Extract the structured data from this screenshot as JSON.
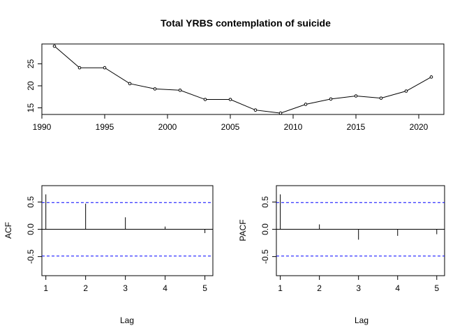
{
  "chart_data": [
    {
      "type": "line",
      "title": "Total YRBS contemplation of suicide",
      "xlabel": "",
      "ylabel": "",
      "xlim": [
        1990,
        2022
      ],
      "ylim": [
        13.5,
        29.5
      ],
      "xticks": [
        1990,
        1995,
        2000,
        2005,
        2010,
        2015,
        2020
      ],
      "yticks": [
        15,
        20,
        25
      ],
      "x": [
        1991,
        1993,
        1995,
        1997,
        1999,
        2001,
        2003,
        2005,
        2007,
        2009,
        2011,
        2013,
        2015,
        2017,
        2019,
        2021
      ],
      "series": [
        {
          "values": [
            29.0,
            24.1,
            24.1,
            20.5,
            19.3,
            19.0,
            16.9,
            16.9,
            14.5,
            13.8,
            15.8,
            17.0,
            17.7,
            17.2,
            18.8,
            22.0
          ]
        }
      ],
      "grid": false
    },
    {
      "type": "bar",
      "title": "",
      "xlabel": "Lag",
      "ylabel": "ACF",
      "xlim": [
        0.9,
        5.2
      ],
      "ylim": [
        -0.85,
        0.8
      ],
      "xticks": [
        1,
        2,
        3,
        4,
        5
      ],
      "yticks": [
        -0.5,
        0.0,
        0.5
      ],
      "x": [
        1,
        2,
        3,
        4,
        5
      ],
      "values": [
        0.64,
        0.47,
        0.22,
        0.05,
        -0.07
      ],
      "confidence_limits": [
        0.49,
        -0.49
      ],
      "confidence_color": "#0000ff"
    },
    {
      "type": "bar",
      "title": "",
      "xlabel": "Lag",
      "ylabel": "PACF",
      "xlim": [
        0.9,
        5.2
      ],
      "ylim": [
        -0.85,
        0.8
      ],
      "xticks": [
        1,
        2,
        3,
        4,
        5
      ],
      "yticks": [
        -0.5,
        0.0,
        0.5
      ],
      "x": [
        1,
        2,
        3,
        4,
        5
      ],
      "values": [
        0.64,
        0.09,
        -0.19,
        -0.12,
        -0.09
      ],
      "confidence_limits": [
        0.49,
        -0.49
      ],
      "confidence_color": "#0000ff"
    }
  ]
}
